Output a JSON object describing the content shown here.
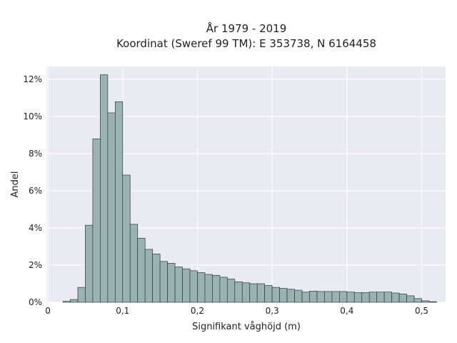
{
  "chart_data": {
    "type": "histogram",
    "title_line1": "År 1979 - 2019",
    "title_line2": "Koordinat (Sweref 99 TM): E 353738, N 6164458",
    "xlabel": "Signifikant våghöjd (m)",
    "ylabel": "Andel",
    "xlim": [
      -0.002,
      0.532
    ],
    "ylim": [
      0,
      12.7
    ],
    "bin_start": 0.02,
    "bin_width": 0.01,
    "values": [
      0.05,
      0.15,
      0.8,
      4.15,
      8.8,
      12.25,
      10.2,
      10.8,
      6.85,
      4.2,
      3.45,
      2.85,
      2.6,
      2.2,
      2.1,
      1.9,
      1.8,
      1.7,
      1.6,
      1.5,
      1.45,
      1.35,
      1.25,
      1.1,
      1.05,
      1.0,
      1.0,
      0.9,
      0.8,
      0.75,
      0.7,
      0.65,
      0.55,
      0.6,
      0.58,
      0.58,
      0.58,
      0.58,
      0.55,
      0.52,
      0.52,
      0.55,
      0.55,
      0.55,
      0.5,
      0.45,
      0.35,
      0.2,
      0.08,
      0.03
    ],
    "x_ticks": [
      0,
      0.1,
      0.2,
      0.3,
      0.4,
      0.5
    ],
    "x_tick_labels": [
      "0",
      "0,1",
      "0,2",
      "0,3",
      "0,4",
      "0,5"
    ],
    "y_ticks": [
      0,
      2,
      4,
      6,
      8,
      10,
      12
    ],
    "y_tick_labels": [
      "0%",
      "2%",
      "4%",
      "6%",
      "8%",
      "10%",
      "12%"
    ],
    "grid": true,
    "colors": {
      "bar_fill": "#9bb3b0",
      "bar_edge": "#2f3b3a",
      "plot_bg": "#eaeaf2",
      "grid": "#ffffff"
    }
  }
}
